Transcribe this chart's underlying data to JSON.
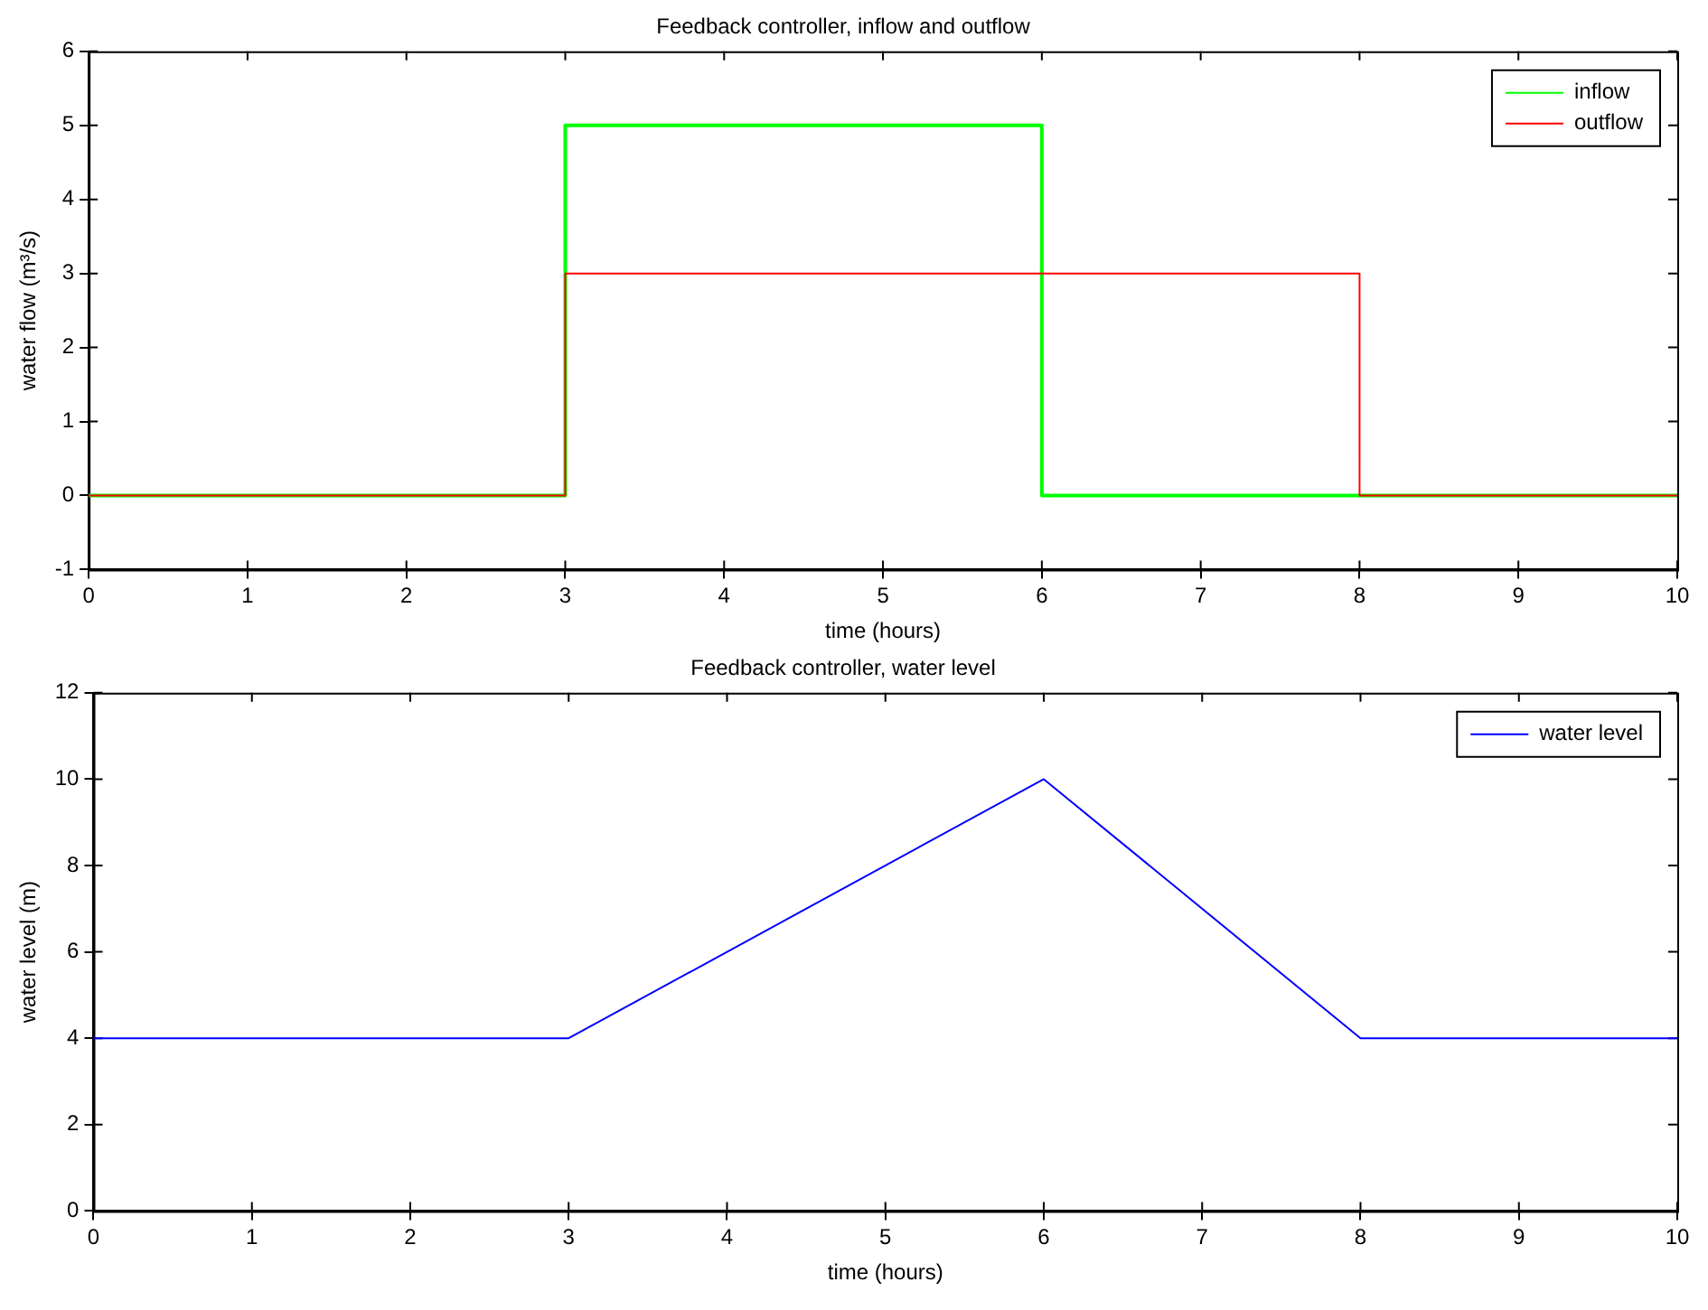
{
  "chart_data": [
    {
      "type": "step",
      "title": "Feedback controller, inflow and outflow",
      "xlabel": "time (hours)",
      "ylabel": "water flow (m³/s)",
      "series": [
        {
          "name": "inflow",
          "color": "#00ff00",
          "x": [
            0,
            3,
            6,
            10
          ],
          "values": [
            0,
            5,
            0,
            0
          ]
        },
        {
          "name": "outflow",
          "color": "#ff0000",
          "x": [
            0,
            3,
            8,
            10
          ],
          "values": [
            0,
            3,
            0,
            0
          ]
        }
      ],
      "xlim": [
        0,
        10
      ],
      "xticks": [
        0,
        1,
        2,
        3,
        4,
        5,
        6,
        7,
        8,
        9,
        10
      ],
      "ylim": [
        -1,
        6
      ],
      "yticks": [
        -1,
        0,
        1,
        2,
        3,
        4,
        5,
        6
      ],
      "grid": false,
      "legend": "top right",
      "marker": "none",
      "line_style": "solid"
    },
    {
      "type": "line",
      "title": "Feedback controller, water level",
      "xlabel": "time (hours)",
      "ylabel": "water level (m)",
      "series": [
        {
          "name": "water level",
          "color": "#0000ff",
          "x": [
            0,
            3,
            6,
            8,
            10
          ],
          "values": [
            4,
            4,
            10,
            4,
            4
          ]
        }
      ],
      "xlim": [
        0,
        10
      ],
      "xticks": [
        0,
        1,
        2,
        3,
        4,
        5,
        6,
        7,
        8,
        9,
        10
      ],
      "ylim": [
        0,
        12
      ],
      "yticks": [
        0,
        2,
        4,
        6,
        8,
        10,
        12
      ],
      "grid": false,
      "legend": "top right",
      "marker": "none",
      "line_style": "solid"
    }
  ]
}
